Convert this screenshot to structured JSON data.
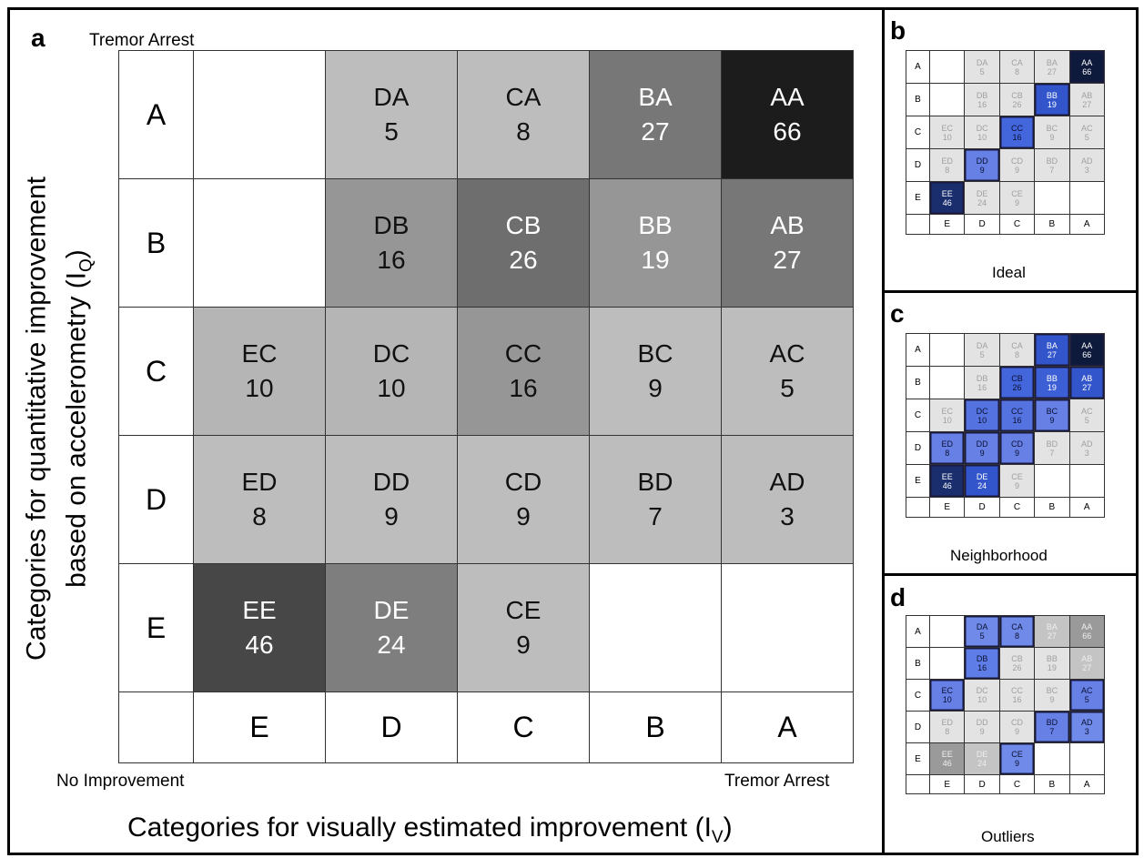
{
  "panel_a": {
    "label": "a",
    "top_label": "Tremor Arrest",
    "bottom_left_label": "No Improvement",
    "bottom_right_label": "Tremor Arrest",
    "ylabel_line1": "Categories for quantitative improvement",
    "ylabel_line2": "based on accelerometry (I",
    "ylabel_sub": "Q",
    "ylabel_close": ")",
    "xlabel": "Categories for visually estimated improvement (I",
    "xlabel_sub": "V",
    "xlabel_close": ")"
  },
  "panel_b": {
    "label": "b",
    "caption": "Ideal"
  },
  "panel_c": {
    "label": "c",
    "caption": "Neighborhood"
  },
  "panel_d": {
    "label": "d",
    "caption": "Outliers"
  },
  "chart_data": [
    {
      "type": "heatmap",
      "title": "",
      "panel": "a",
      "rows": [
        "A",
        "B",
        "C",
        "D",
        "E"
      ],
      "columns": [
        "E",
        "D",
        "C",
        "B",
        "A"
      ],
      "cells": [
        [
          null,
          {
            "code": "DA",
            "count": 5
          },
          {
            "code": "CA",
            "count": 8
          },
          {
            "code": "BA",
            "count": 27
          },
          {
            "code": "AA",
            "count": 66
          }
        ],
        [
          null,
          {
            "code": "DB",
            "count": 16
          },
          {
            "code": "CB",
            "count": 26
          },
          {
            "code": "BB",
            "count": 19
          },
          {
            "code": "AB",
            "count": 27
          }
        ],
        [
          {
            "code": "EC",
            "count": 10
          },
          {
            "code": "DC",
            "count": 10
          },
          {
            "code": "CC",
            "count": 16
          },
          {
            "code": "BC",
            "count": 9
          },
          {
            "code": "AC",
            "count": 5
          }
        ],
        [
          {
            "code": "ED",
            "count": 8
          },
          {
            "code": "DD",
            "count": 9
          },
          {
            "code": "CD",
            "count": 9
          },
          {
            "code": "BD",
            "count": 7
          },
          {
            "code": "AD",
            "count": 3
          }
        ],
        [
          {
            "code": "EE",
            "count": 46
          },
          {
            "code": "DE",
            "count": 24
          },
          {
            "code": "CE",
            "count": 9
          },
          null,
          null
        ]
      ],
      "fill_colors": [
        [
          null,
          "#bdbdbd",
          "#bdbdbd",
          "#777777",
          "#1c1c1c"
        ],
        [
          null,
          "#969696",
          "#6e6e6e",
          "#969696",
          "#777777"
        ],
        [
          "#b5b5b5",
          "#b5b5b5",
          "#969696",
          "#bdbdbd",
          "#bdbdbd"
        ],
        [
          "#bdbdbd",
          "#bdbdbd",
          "#bdbdbd",
          "#bdbdbd",
          "#bdbdbd"
        ],
        [
          "#474747",
          "#7e7e7e",
          "#bdbdbd",
          null,
          null
        ]
      ],
      "light_text_cells": [
        "BA",
        "AA",
        "CB",
        "BB",
        "AB",
        "EE",
        "DE"
      ],
      "xlabel": "Categories for visually estimated improvement (IV)",
      "ylabel": "Categories for quantitative improvement based on accelerometry (IQ)"
    },
    {
      "type": "heatmap",
      "panel": "b",
      "caption": "Ideal",
      "highlighted_cells": [
        "AA",
        "BB",
        "CC",
        "DD",
        "EE"
      ],
      "highlight_colors": {
        "AA": "#0e1a3c",
        "BB": "#3355cc",
        "CC": "#4466dd",
        "DD": "#6680e6",
        "EE": "#1a2e6e"
      }
    },
    {
      "type": "heatmap",
      "panel": "c",
      "caption": "Neighborhood",
      "highlighted_cells": [
        "AA",
        "BA",
        "AB",
        "BB",
        "CB",
        "DC",
        "CC",
        "BC",
        "ED",
        "DD",
        "CD",
        "EE",
        "DE"
      ],
      "highlight_colors": {
        "AA": "#0e1a3c",
        "BA": "#3355cc",
        "AB": "#3355cc",
        "BB": "#3d5fd6",
        "CB": "#4466dd",
        "DC": "#5573e0",
        "CC": "#5573e0",
        "BC": "#6680e6",
        "ED": "#6680e6",
        "DD": "#6680e6",
        "CD": "#6680e6",
        "EE": "#1a2e6e",
        "DE": "#3355cc"
      }
    },
    {
      "type": "heatmap",
      "panel": "d",
      "caption": "Outliers",
      "highlighted_cells": [
        "DA",
        "CA",
        "DB",
        "EC",
        "AC",
        "BD",
        "AD",
        "CE"
      ],
      "highlight_colors": {
        "DA": "#6f8ae8",
        "CA": "#6f8ae8",
        "DB": "#5f7de6",
        "EC": "#6680e6",
        "AC": "#6680e6",
        "BD": "#6680e6",
        "AD": "#6f8ae8",
        "CE": "#6f8ae8"
      },
      "grey_cells": {
        "BA": "#c4c4c4",
        "AA": "#9a9a9a",
        "AB": "#c4c4c4",
        "EE": "#9a9a9a",
        "DE": "#c4c4c4"
      }
    }
  ]
}
